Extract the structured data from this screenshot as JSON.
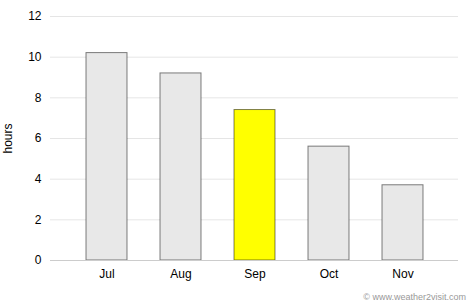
{
  "chart_data": {
    "type": "bar",
    "ylabel": "hours",
    "categories": [
      "Jul",
      "Aug",
      "Sep",
      "Oct",
      "Nov"
    ],
    "values": [
      10.2,
      9.2,
      7.4,
      5.6,
      3.7
    ],
    "colors": [
      "#e8e8e8",
      "#e8e8e8",
      "#ffff00",
      "#e8e8e8",
      "#e8e8e8"
    ],
    "ylim": [
      0,
      12
    ],
    "yticks": [
      0,
      2,
      4,
      6,
      8,
      10,
      12
    ],
    "grid": true,
    "annotations": [
      "© www.weather2visit.com"
    ]
  }
}
